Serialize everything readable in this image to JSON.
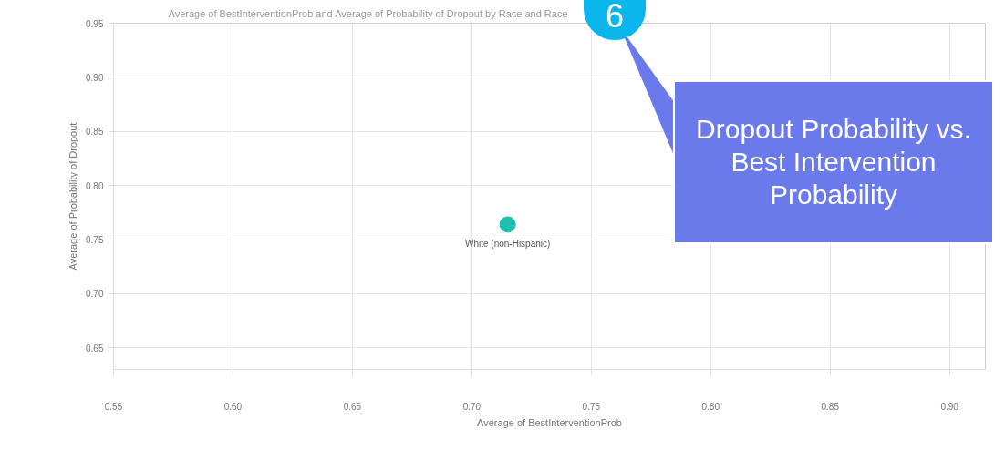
{
  "chart_data": {
    "type": "scatter",
    "title": "Average of BestInterventionProb and Average of Probability of Dropout by Race and Race",
    "xlabel": "Average of BestInterventionProb",
    "ylabel": "Average of Probability of Dropout",
    "x": [
      0.715
    ],
    "series": [
      {
        "color": "#1fbfb0",
        "values": [
          0.764
        ]
      }
    ],
    "marker": "circle",
    "grid": true,
    "xlim": [
      0.55,
      0.915
    ],
    "xticks": [
      0.55,
      {
        "value": 0.6,
        "label": "0.60"
      },
      0.65,
      {
        "value": 0.7,
        "label": "0.70"
      },
      0.75,
      {
        "value": 0.8,
        "label": "0.80"
      },
      0.85,
      {
        "value": 0.9,
        "label": "0.90"
      }
    ],
    "ylim": [
      0.63,
      0.95
    ],
    "yticks": [
      0.65,
      {
        "value": 0.7,
        "label": "0.70"
      },
      0.75,
      {
        "value": 0.8,
        "label": "0.80"
      },
      0.85,
      {
        "value": 0.9,
        "label": "0.90"
      },
      0.95
    ],
    "annotations": [
      {
        "text": "White (non-Hispanic)",
        "x": 0.715,
        "y": 0.764
      },
      "6",
      "Dropout Probability vs. Best Intervention Probability"
    ]
  }
}
